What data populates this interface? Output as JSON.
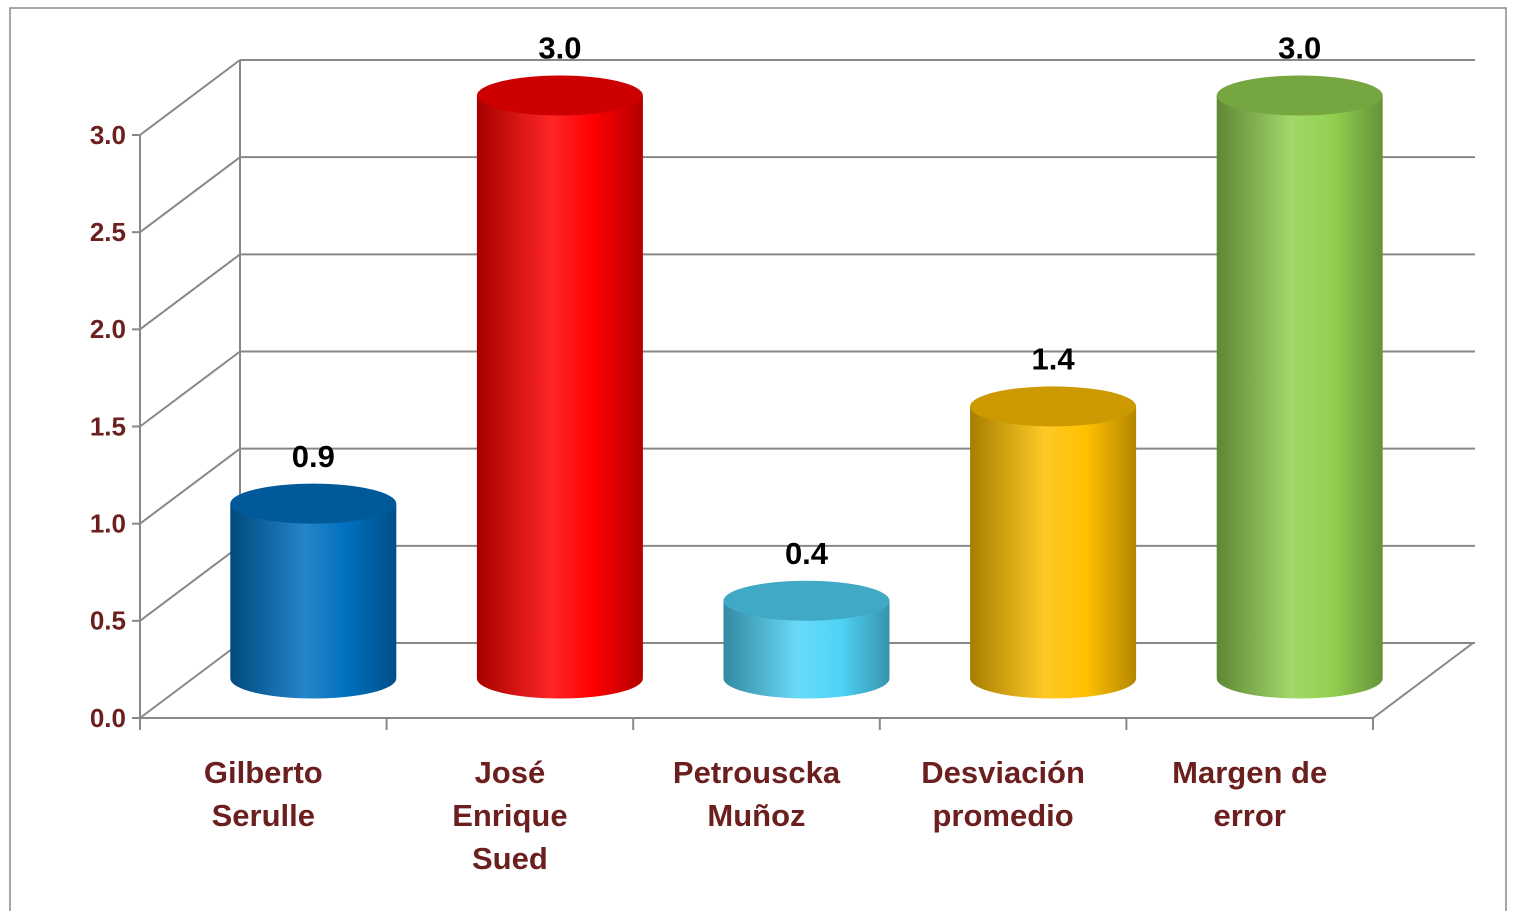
{
  "chart_data": {
    "type": "cylinder",
    "categories": [
      "Gilberto Serulle",
      "José Enrique Sued",
      "Petrouscka Muñoz",
      "Desviación promedio",
      "Margen de error"
    ],
    "values": [
      0.9,
      3.0,
      0.4,
      1.4,
      3.0
    ],
    "value_labels": [
      "0.9",
      "3.0",
      "0.4",
      "1.4",
      "3.0"
    ],
    "colors": [
      "#0070c0",
      "#ff0000",
      "#4fd3f7",
      "#ffc000",
      "#92d050"
    ],
    "ylim": [
      0,
      3
    ],
    "yticks": [
      {
        "value": 0,
        "label": "0.0"
      },
      0.5,
      {
        "value": 1,
        "label": "1.0"
      },
      1.5,
      {
        "value": 2,
        "label": "2.0"
      },
      2.5,
      {
        "value": 3,
        "label": "3.0"
      }
    ],
    "grid": true
  }
}
